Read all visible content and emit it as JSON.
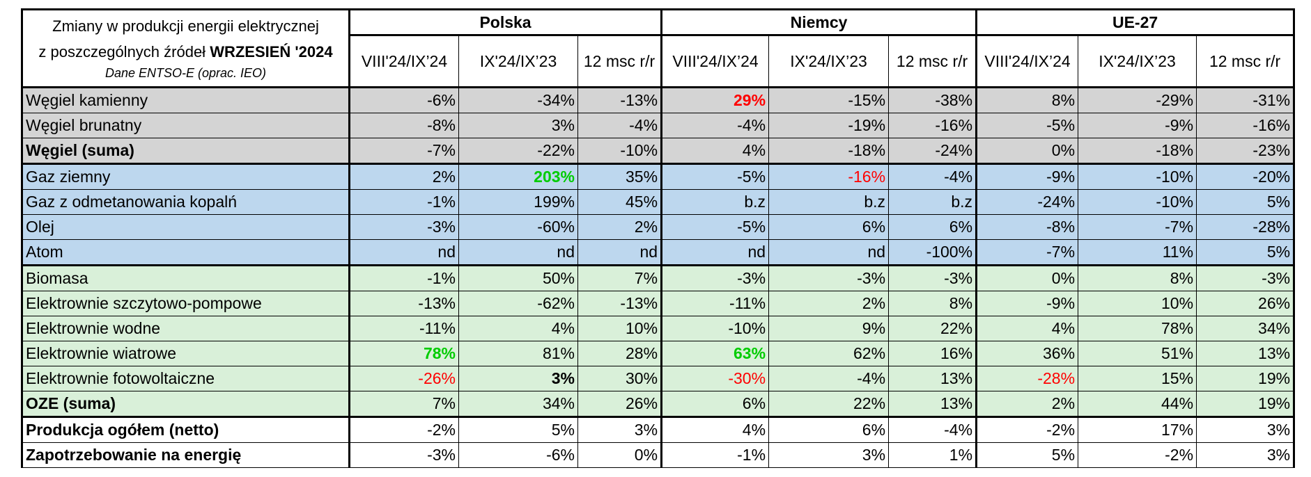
{
  "header": {
    "title_line1": "Zmiany w produkcji energii elektrycznej",
    "title_line2_prefix": "z poszczególnych źródeł ",
    "title_line2_bold": "WRZESIEŃ '2024",
    "source": "Dane  ENTSO-E (oprac. IEO)",
    "countries": [
      "Polska",
      "Niemcy",
      "UE-27"
    ],
    "subheaders": [
      "VIII'24/IX’24",
      "IX'24/IX’23",
      "12 msc r/r"
    ]
  },
  "rows": [
    {
      "label": "Węgiel kamienny",
      "bold": false,
      "band": "coal",
      "values": [
        "-6%",
        "-34%",
        "-13%",
        "29%",
        "-15%",
        "-38%",
        "8%",
        "-29%",
        "-31%"
      ],
      "styles": [
        "",
        "",
        "",
        "redb",
        "",
        "",
        "",
        "",
        ""
      ]
    },
    {
      "label": "Węgiel brunatny",
      "bold": false,
      "band": "coal",
      "values": [
        "-8%",
        "3%",
        "-4%",
        "-4%",
        "-19%",
        "-16%",
        "-5%",
        "-9%",
        "-16%"
      ],
      "styles": [
        "",
        "",
        "",
        "",
        "",
        "",
        "",
        "",
        ""
      ]
    },
    {
      "label": "Węgiel (suma)",
      "bold": true,
      "band": "coal",
      "values": [
        "-7%",
        "-22%",
        "-10%",
        "4%",
        "-18%",
        "-24%",
        "0%",
        "-18%",
        "-23%"
      ],
      "styles": [
        "",
        "",
        "",
        "",
        "",
        "",
        "",
        "",
        ""
      ]
    },
    {
      "label": "Gaz ziemny",
      "bold": false,
      "band": "blue",
      "values": [
        "2%",
        "203%",
        "35%",
        "-5%",
        "-16%",
        "-4%",
        "-9%",
        "-10%",
        "-20%"
      ],
      "styles": [
        "",
        "greenb",
        "",
        "",
        "red",
        "",
        "",
        "",
        ""
      ]
    },
    {
      "label": "Gaz z odmetanowania kopalń",
      "bold": false,
      "band": "blue",
      "values": [
        "-1%",
        "199%",
        "45%",
        "b.z",
        "b.z",
        "b.z",
        "-24%",
        "-10%",
        "5%"
      ],
      "styles": [
        "",
        "",
        "",
        "",
        "",
        "",
        "",
        "",
        ""
      ]
    },
    {
      "label": "Olej",
      "bold": false,
      "band": "blue",
      "values": [
        "-3%",
        "-60%",
        "2%",
        "-5%",
        "6%",
        "6%",
        "-8%",
        "-7%",
        "-28%"
      ],
      "styles": [
        "",
        "",
        "",
        "",
        "",
        "",
        "",
        "",
        ""
      ]
    },
    {
      "label": "Atom",
      "bold": false,
      "band": "blue",
      "values": [
        "nd",
        "nd",
        "nd",
        "nd",
        "nd",
        "-100%",
        "-7%",
        "11%",
        "5%"
      ],
      "styles": [
        "",
        "",
        "",
        "",
        "",
        "",
        "",
        "",
        ""
      ]
    },
    {
      "label": "Biomasa",
      "bold": false,
      "band": "green",
      "values": [
        "-1%",
        "50%",
        "7%",
        "-3%",
        "-3%",
        "-3%",
        "0%",
        "8%",
        "-3%"
      ],
      "styles": [
        "",
        "",
        "",
        "",
        "",
        "",
        "",
        "",
        ""
      ]
    },
    {
      "label": "Elektrownie szczytowo-pompowe",
      "bold": false,
      "band": "green",
      "values": [
        "-13%",
        "-62%",
        "-13%",
        "-11%",
        "2%",
        "8%",
        "-9%",
        "10%",
        "26%"
      ],
      "styles": [
        "",
        "",
        "",
        "",
        "",
        "",
        "",
        "",
        ""
      ]
    },
    {
      "label": "Elektrownie wodne",
      "bold": false,
      "band": "green",
      "values": [
        "-11%",
        "4%",
        "10%",
        "-10%",
        "9%",
        "22%",
        "4%",
        "78%",
        "34%"
      ],
      "styles": [
        "",
        "",
        "",
        "",
        "",
        "",
        "",
        "",
        ""
      ]
    },
    {
      "label": "Elektrownie wiatrowe",
      "bold": false,
      "band": "green",
      "values": [
        "78%",
        "81%",
        "28%",
        "63%",
        "62%",
        "16%",
        "36%",
        "51%",
        "13%"
      ],
      "styles": [
        "greenb",
        "",
        "",
        "greenb",
        "",
        "",
        "",
        "",
        ""
      ]
    },
    {
      "label": "Elektrownie fotowoltaiczne",
      "bold": false,
      "band": "green",
      "values": [
        "-26%",
        "3%",
        "30%",
        "-30%",
        "-4%",
        "13%",
        "-28%",
        "15%",
        "19%"
      ],
      "styles": [
        "red",
        "bold",
        "",
        "red",
        "",
        "",
        "red",
        "",
        ""
      ]
    },
    {
      "label": "OZE (suma)",
      "bold": true,
      "band": "green",
      "values": [
        "7%",
        "34%",
        "26%",
        "6%",
        "22%",
        "13%",
        "2%",
        "44%",
        "19%"
      ],
      "styles": [
        "",
        "",
        "",
        "",
        "",
        "",
        "",
        "",
        ""
      ]
    },
    {
      "label": "Produkcja ogółem (netto)",
      "bold": true,
      "band": "white",
      "values": [
        "-2%",
        "5%",
        "3%",
        "4%",
        "6%",
        "-4%",
        "-2%",
        "17%",
        "3%"
      ],
      "styles": [
        "",
        "",
        "",
        "",
        "",
        "",
        "",
        "",
        ""
      ]
    },
    {
      "label": "Zapotrzebowanie na energię",
      "bold": true,
      "band": "white",
      "values": [
        "-3%",
        "-6%",
        "0%",
        "-1%",
        "3%",
        "1%",
        "5%",
        "-2%",
        "3%"
      ],
      "styles": [
        "",
        "",
        "",
        "",
        "",
        "",
        "",
        "",
        ""
      ]
    }
  ]
}
